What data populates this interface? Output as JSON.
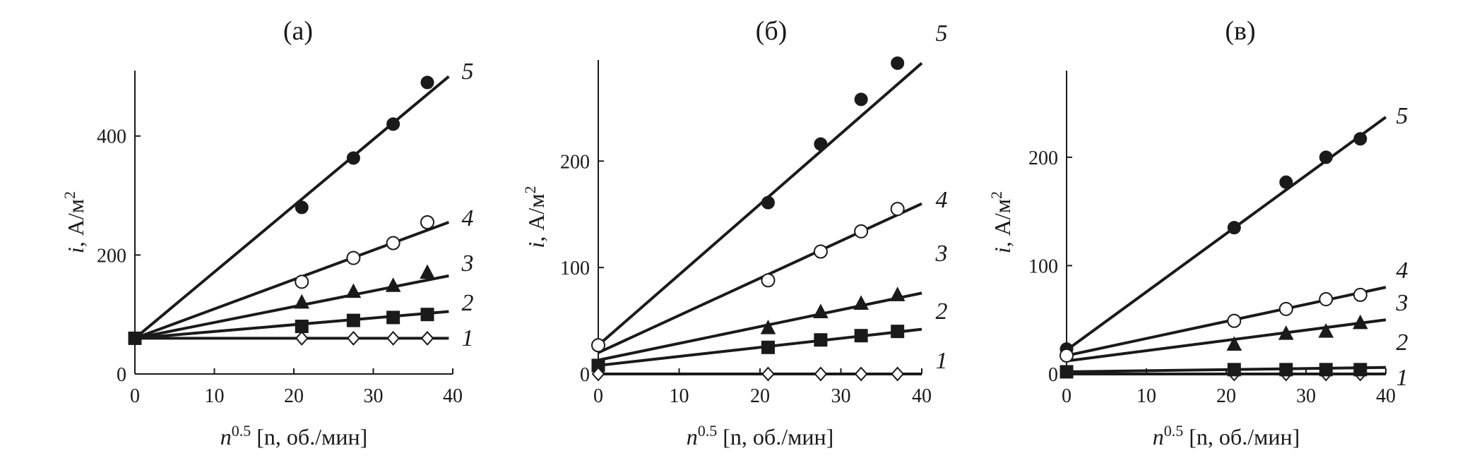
{
  "chart_data": [
    {
      "type": "scatter",
      "panel_label": "(а)",
      "xlabel": {
        "base": "n",
        "sup": "0.5",
        "rest": " [n, об./мин]"
      },
      "ylabel": {
        "base": "i",
        "rest": ", А/м",
        "sup": "2"
      },
      "xlim": [
        0,
        40
      ],
      "ylim": [
        0,
        510
      ],
      "xticks": [
        "0",
        "10",
        "20",
        "30",
        "40"
      ],
      "xtick_values": [
        0,
        10,
        20,
        30,
        40
      ],
      "yticks": [
        "0",
        "200",
        "400"
      ],
      "ytick_values": [
        0,
        200,
        400
      ],
      "series": [
        {
          "name": "1",
          "marker": "diamond-open",
          "x": [
            21,
            27.5,
            32.5,
            36.8
          ],
          "y": [
            60,
            60,
            60,
            60
          ],
          "fit": {
            "x0": 0,
            "y0": 60,
            "x1": 39.5,
            "y1": 60
          }
        },
        {
          "name": "2",
          "marker": "square-filled",
          "x": [
            21,
            27.5,
            32.5,
            36.8
          ],
          "y": [
            80,
            90,
            95,
            100
          ],
          "fit": {
            "x0": 0,
            "y0": 60,
            "x1": 39.5,
            "y1": 105
          }
        },
        {
          "name": "3",
          "marker": "triangle-filled",
          "x": [
            21,
            27.5,
            32.5,
            36.8
          ],
          "y": [
            120,
            138,
            148,
            170
          ],
          "fit": {
            "x0": 0,
            "y0": 60,
            "x1": 39.5,
            "y1": 165
          }
        },
        {
          "name": "4",
          "marker": "circle-open",
          "x": [
            21,
            27.5,
            32.5,
            36.8
          ],
          "y": [
            155,
            195,
            220,
            255
          ],
          "fit": {
            "x0": 0,
            "y0": 60,
            "x1": 39.5,
            "y1": 255
          }
        },
        {
          "name": "5",
          "marker": "circle-filled",
          "x": [
            21,
            27.5,
            32.5,
            36.8
          ],
          "y": [
            280,
            363,
            420,
            490
          ],
          "fit": {
            "x0": 0,
            "y0": 60,
            "x1": 39.5,
            "y1": 500
          }
        }
      ],
      "origin_point": {
        "marker": "square-filled",
        "x": 0,
        "y": 60
      },
      "curve_labels": [
        "1",
        "2",
        "3",
        "4",
        "5"
      ]
    },
    {
      "type": "scatter",
      "panel_label": "(б)",
      "xlabel": {
        "base": "n",
        "sup": "0.5",
        "rest": " [n, об./мин]"
      },
      "ylabel": {
        "base": "i",
        "rest": ", А/м",
        "sup": "2"
      },
      "xlim": [
        0,
        40
      ],
      "ylim": [
        0,
        295
      ],
      "xticks": [
        "0",
        "10",
        "20",
        "30",
        "40"
      ],
      "xtick_values": [
        0,
        10,
        20,
        30,
        40
      ],
      "yticks": [
        "0",
        "100",
        "200"
      ],
      "ytick_values": [
        0,
        100,
        200
      ],
      "series": [
        {
          "name": "1",
          "marker": "diamond-open",
          "x": [
            21,
            27.5,
            32.5,
            37
          ],
          "y": [
            0,
            0,
            0,
            0
          ],
          "fit": {
            "x0": 0,
            "y0": 0,
            "x1": 40,
            "y1": 0
          }
        },
        {
          "name": "2",
          "marker": "square-filled",
          "x": [
            21,
            27.5,
            32.5,
            37
          ],
          "y": [
            25,
            32,
            36,
            40
          ],
          "fit": {
            "x0": 0,
            "y0": 8,
            "x1": 40,
            "y1": 42
          }
        },
        {
          "name": "3",
          "marker": "triangle-filled",
          "x": [
            21,
            27.5,
            32.5,
            37
          ],
          "y": [
            43,
            58,
            66,
            74
          ],
          "fit": {
            "x0": 0,
            "y0": 13,
            "x1": 40,
            "y1": 76
          }
        },
        {
          "name": "4",
          "marker": "circle-open",
          "x": [
            21,
            27.5,
            32.5,
            37
          ],
          "y": [
            88,
            115,
            134,
            155
          ],
          "fit": {
            "x0": 0,
            "y0": 20,
            "x1": 40,
            "y1": 160
          }
        },
        {
          "name": "5",
          "marker": "circle-filled",
          "x": [
            21,
            27.5,
            32.5,
            37
          ],
          "y": [
            161,
            216,
            258,
            292
          ],
          "fit": {
            "x0": 0,
            "y0": 27,
            "x1": 40,
            "y1": 292
          }
        }
      ],
      "origin_points": [
        {
          "marker": "circle-open",
          "x": 0,
          "y": 27
        },
        {
          "marker": "square-filled",
          "x": 0,
          "y": 8
        },
        {
          "marker": "diamond-open",
          "x": 0,
          "y": 0
        }
      ],
      "curve_labels": [
        "1",
        "2",
        "3",
        "4",
        "5"
      ]
    },
    {
      "type": "scatter",
      "panel_label": "(в)",
      "xlabel": {
        "base": "n",
        "sup": "0.5",
        "rest": " [n, об./мин]"
      },
      "ylabel": {
        "base": "i",
        "rest": ", А/м",
        "sup": "2"
      },
      "xlim": [
        0,
        40
      ],
      "ylim": [
        0,
        280
      ],
      "xticks": [
        "0",
        "10",
        "20",
        "30",
        "40"
      ],
      "xtick_values": [
        0,
        10,
        20,
        30,
        40
      ],
      "yticks": [
        "0",
        "100",
        "200"
      ],
      "ytick_values": [
        0,
        100,
        200
      ],
      "series": [
        {
          "name": "1",
          "marker": "diamond-open",
          "x": [
            21,
            27.5,
            32.5,
            36.8
          ],
          "y": [
            0,
            0,
            0,
            0
          ],
          "fit": {
            "x0": 0,
            "y0": 0,
            "x1": 40,
            "y1": 0
          }
        },
        {
          "name": "2",
          "marker": "square-filled",
          "x": [
            21,
            27.5,
            32.5,
            36.8
          ],
          "y": [
            4,
            4,
            4,
            4
          ],
          "fit": {
            "x0": 0,
            "y0": 2,
            "x1": 40,
            "y1": 6
          }
        },
        {
          "name": "3",
          "marker": "triangle-filled",
          "x": [
            21,
            27.5,
            32.5,
            36.8
          ],
          "y": [
            27,
            37,
            39,
            47
          ],
          "fit": {
            "x0": 0,
            "y0": 12,
            "x1": 40,
            "y1": 50
          }
        },
        {
          "name": "4",
          "marker": "circle-open",
          "x": [
            21,
            27.5,
            32.5,
            36.8
          ],
          "y": [
            49,
            60,
            69,
            73
          ],
          "fit": {
            "x0": 0,
            "y0": 17,
            "x1": 40,
            "y1": 80
          }
        },
        {
          "name": "5",
          "marker": "circle-filled",
          "x": [
            21,
            27.5,
            32.5,
            36.8
          ],
          "y": [
            135,
            177,
            200,
            217
          ],
          "fit": {
            "x0": 0,
            "y0": 22,
            "x1": 40,
            "y1": 237
          }
        }
      ],
      "origin_points": [
        {
          "marker": "circle-filled",
          "x": 0,
          "y": 23
        },
        {
          "marker": "circle-open",
          "x": 0,
          "y": 17
        },
        {
          "marker": "square-filled",
          "x": 0,
          "y": 2
        }
      ],
      "curve_labels": [
        "1",
        "2",
        "3",
        "4",
        "5"
      ]
    }
  ]
}
